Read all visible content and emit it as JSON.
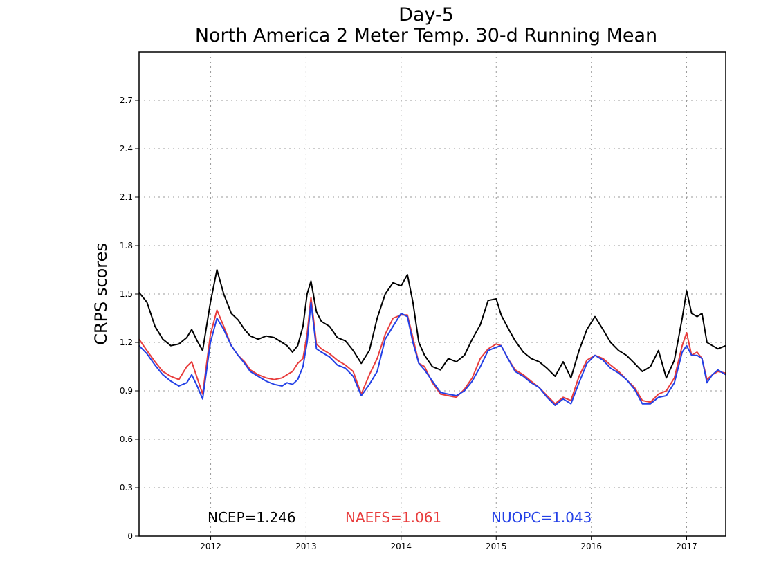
{
  "chart_data": {
    "type": "line",
    "title": "Day-5",
    "subtitle": "North America 2 Meter Temp. 30-d Running Mean",
    "ylabel": "CRPS scores",
    "xlabel": "",
    "ylim": [
      0,
      3.0
    ],
    "yticks": [
      0,
      0.3,
      0.6,
      0.9,
      1.2,
      1.5,
      1.8,
      2.1,
      2.4,
      2.7
    ],
    "ytick_labels": [
      "0",
      "0.3",
      "0.6",
      "0.9",
      "1.2",
      "1.5",
      "1.8",
      "2.1",
      "2.4",
      "2.7"
    ],
    "xlim": [
      "2011-04-01",
      "2017-05-31"
    ],
    "xticks": [
      "2012-01-01",
      "2013-01-01",
      "2014-01-01",
      "2015-01-01",
      "2016-01-01",
      "2017-01-01"
    ],
    "xtick_labels": [
      "2012",
      "2013",
      "2014",
      "2015",
      "2016",
      "2017"
    ],
    "grid": true,
    "legend_position": "bottom",
    "legend": [
      {
        "text": "NCEP=1.246",
        "color": "#000000"
      },
      {
        "text": "NAEFS=1.061",
        "color": "#e83c3c"
      },
      {
        "text": "NUOPC=1.043",
        "color": "#2340e6"
      }
    ],
    "series": [
      {
        "color": "#000000",
        "x": [
          "2011-04-01",
          "2011-05-01",
          "2011-06-01",
          "2011-07-01",
          "2011-08-01",
          "2011-09-01",
          "2011-10-01",
          "2011-10-20",
          "2011-11-10",
          "2011-12-01",
          "2011-12-31",
          "2012-01-25",
          "2012-02-20",
          "2012-03-20",
          "2012-04-15",
          "2012-05-10",
          "2012-06-01",
          "2012-07-01",
          "2012-08-01",
          "2012-09-01",
          "2012-10-01",
          "2012-10-20",
          "2012-11-10",
          "2012-11-30",
          "2012-12-20",
          "2013-01-05",
          "2013-01-20",
          "2013-02-10",
          "2013-03-01",
          "2013-04-01",
          "2013-05-01",
          "2013-06-01",
          "2013-07-01",
          "2013-08-01",
          "2013-09-01",
          "2013-10-01",
          "2013-11-01",
          "2013-12-01",
          "2014-01-01",
          "2014-01-25",
          "2014-02-15",
          "2014-03-10",
          "2014-04-01",
          "2014-05-01",
          "2014-06-01",
          "2014-07-01",
          "2014-08-01",
          "2014-09-01",
          "2014-10-01",
          "2014-11-01",
          "2014-12-01",
          "2015-01-01",
          "2015-01-20",
          "2015-02-15",
          "2015-03-15",
          "2015-04-15",
          "2015-05-15",
          "2015-06-15",
          "2015-07-15",
          "2015-08-15",
          "2015-09-15",
          "2015-10-15",
          "2015-11-15",
          "2015-12-15",
          "2016-01-15",
          "2016-02-15",
          "2016-03-15",
          "2016-04-15",
          "2016-05-15",
          "2016-06-15",
          "2016-07-15",
          "2016-08-15",
          "2016-09-15",
          "2016-10-15",
          "2016-11-15",
          "2016-12-15",
          "2017-01-01",
          "2017-01-20",
          "2017-02-10",
          "2017-03-01",
          "2017-03-20",
          "2017-04-10",
          "2017-05-01",
          "2017-05-31"
        ],
        "values": [
          1.51,
          1.45,
          1.3,
          1.22,
          1.18,
          1.19,
          1.23,
          1.28,
          1.21,
          1.15,
          1.45,
          1.65,
          1.5,
          1.38,
          1.34,
          1.28,
          1.24,
          1.22,
          1.24,
          1.23,
          1.2,
          1.18,
          1.14,
          1.18,
          1.3,
          1.5,
          1.58,
          1.39,
          1.33,
          1.3,
          1.23,
          1.21,
          1.15,
          1.07,
          1.15,
          1.35,
          1.5,
          1.57,
          1.55,
          1.62,
          1.45,
          1.2,
          1.12,
          1.05,
          1.03,
          1.1,
          1.08,
          1.12,
          1.22,
          1.31,
          1.46,
          1.47,
          1.37,
          1.29,
          1.21,
          1.14,
          1.1,
          1.08,
          1.04,
          0.99,
          1.08,
          0.98,
          1.15,
          1.28,
          1.36,
          1.28,
          1.2,
          1.15,
          1.12,
          1.07,
          1.02,
          1.05,
          1.15,
          0.98,
          1.09,
          1.35,
          1.52,
          1.38,
          1.36,
          1.38,
          1.2,
          1.18,
          1.16,
          1.18
        ]
      },
      {
        "color": "#e83c3c",
        "x": [
          "2011-04-01",
          "2011-05-01",
          "2011-06-01",
          "2011-07-01",
          "2011-08-01",
          "2011-09-01",
          "2011-10-01",
          "2011-10-20",
          "2011-11-10",
          "2011-12-01",
          "2011-12-31",
          "2012-01-25",
          "2012-02-20",
          "2012-03-20",
          "2012-04-15",
          "2012-05-10",
          "2012-06-01",
          "2012-07-01",
          "2012-08-01",
          "2012-09-01",
          "2012-10-01",
          "2012-10-20",
          "2012-11-10",
          "2012-11-30",
          "2012-12-20",
          "2013-01-05",
          "2013-01-20",
          "2013-02-10",
          "2013-03-01",
          "2013-04-01",
          "2013-05-01",
          "2013-06-01",
          "2013-07-01",
          "2013-08-01",
          "2013-09-01",
          "2013-10-01",
          "2013-11-01",
          "2013-12-01",
          "2014-01-01",
          "2014-01-25",
          "2014-02-15",
          "2014-03-10",
          "2014-04-01",
          "2014-05-01",
          "2014-06-01",
          "2014-07-01",
          "2014-08-01",
          "2014-09-01",
          "2014-10-01",
          "2014-11-01",
          "2014-12-01",
          "2015-01-01",
          "2015-01-20",
          "2015-02-15",
          "2015-03-15",
          "2015-04-15",
          "2015-05-15",
          "2015-06-15",
          "2015-07-15",
          "2015-08-15",
          "2015-09-15",
          "2015-10-15",
          "2015-11-15",
          "2015-12-15",
          "2016-01-15",
          "2016-02-15",
          "2016-03-15",
          "2016-04-15",
          "2016-05-15",
          "2016-06-15",
          "2016-07-15",
          "2016-08-15",
          "2016-09-15",
          "2016-10-15",
          "2016-11-15",
          "2016-12-15",
          "2017-01-01",
          "2017-01-20",
          "2017-02-10",
          "2017-03-01",
          "2017-03-20",
          "2017-04-10",
          "2017-05-01",
          "2017-05-31"
        ],
        "values": [
          1.22,
          1.15,
          1.08,
          1.02,
          0.99,
          0.97,
          1.05,
          1.08,
          0.98,
          0.88,
          1.25,
          1.4,
          1.3,
          1.18,
          1.12,
          1.08,
          1.03,
          1.0,
          0.98,
          0.97,
          0.98,
          1.0,
          1.02,
          1.07,
          1.1,
          1.25,
          1.48,
          1.19,
          1.16,
          1.13,
          1.09,
          1.06,
          1.02,
          0.88,
          1.0,
          1.1,
          1.25,
          1.35,
          1.37,
          1.37,
          1.23,
          1.07,
          1.05,
          0.95,
          0.88,
          0.87,
          0.86,
          0.91,
          0.98,
          1.1,
          1.16,
          1.19,
          1.18,
          1.1,
          1.03,
          1.0,
          0.96,
          0.92,
          0.87,
          0.82,
          0.86,
          0.84,
          0.99,
          1.09,
          1.12,
          1.1,
          1.06,
          1.02,
          0.97,
          0.92,
          0.84,
          0.83,
          0.88,
          0.9,
          0.98,
          1.18,
          1.26,
          1.12,
          1.14,
          1.1,
          0.97,
          1.0,
          1.02,
          1.01
        ]
      },
      {
        "color": "#2340e6",
        "x": [
          "2011-04-01",
          "2011-05-01",
          "2011-06-01",
          "2011-07-01",
          "2011-08-01",
          "2011-09-01",
          "2011-10-01",
          "2011-10-20",
          "2011-11-10",
          "2011-12-01",
          "2011-12-31",
          "2012-01-25",
          "2012-02-20",
          "2012-03-20",
          "2012-04-15",
          "2012-05-10",
          "2012-06-01",
          "2012-07-01",
          "2012-08-01",
          "2012-09-01",
          "2012-10-01",
          "2012-10-20",
          "2012-11-10",
          "2012-11-30",
          "2012-12-20",
          "2013-01-05",
          "2013-01-20",
          "2013-02-10",
          "2013-03-01",
          "2013-04-01",
          "2013-05-01",
          "2013-06-01",
          "2013-07-01",
          "2013-08-01",
          "2013-09-01",
          "2013-10-01",
          "2013-11-01",
          "2013-12-01",
          "2014-01-01",
          "2014-01-25",
          "2014-02-15",
          "2014-03-10",
          "2014-04-01",
          "2014-05-01",
          "2014-06-01",
          "2014-07-01",
          "2014-08-01",
          "2014-09-01",
          "2014-10-01",
          "2014-11-01",
          "2014-12-01",
          "2015-01-01",
          "2015-01-20",
          "2015-02-15",
          "2015-03-15",
          "2015-04-15",
          "2015-05-15",
          "2015-06-15",
          "2015-07-15",
          "2015-08-15",
          "2015-09-15",
          "2015-10-15",
          "2015-11-15",
          "2015-12-15",
          "2016-01-15",
          "2016-02-15",
          "2016-03-15",
          "2016-04-15",
          "2016-05-15",
          "2016-06-15",
          "2016-07-15",
          "2016-08-15",
          "2016-09-15",
          "2016-10-15",
          "2016-11-15",
          "2016-12-15",
          "2017-01-01",
          "2017-01-20",
          "2017-02-10",
          "2017-03-01",
          "2017-03-20",
          "2017-04-10",
          "2017-05-01",
          "2017-05-31"
        ],
        "values": [
          1.18,
          1.13,
          1.06,
          1.0,
          0.96,
          0.93,
          0.95,
          1.0,
          0.93,
          0.85,
          1.2,
          1.35,
          1.28,
          1.18,
          1.12,
          1.07,
          1.02,
          0.99,
          0.96,
          0.94,
          0.93,
          0.95,
          0.94,
          0.97,
          1.05,
          1.2,
          1.45,
          1.16,
          1.14,
          1.11,
          1.06,
          1.04,
          0.99,
          0.87,
          0.94,
          1.02,
          1.22,
          1.3,
          1.38,
          1.36,
          1.2,
          1.07,
          1.03,
          0.96,
          0.89,
          0.88,
          0.87,
          0.9,
          0.96,
          1.05,
          1.15,
          1.17,
          1.18,
          1.1,
          1.02,
          0.99,
          0.95,
          0.92,
          0.86,
          0.81,
          0.85,
          0.82,
          0.95,
          1.07,
          1.12,
          1.09,
          1.04,
          1.01,
          0.97,
          0.91,
          0.82,
          0.82,
          0.86,
          0.87,
          0.95,
          1.14,
          1.18,
          1.12,
          1.12,
          1.1,
          0.95,
          1.0,
          1.03,
          1.0
        ]
      }
    ]
  }
}
